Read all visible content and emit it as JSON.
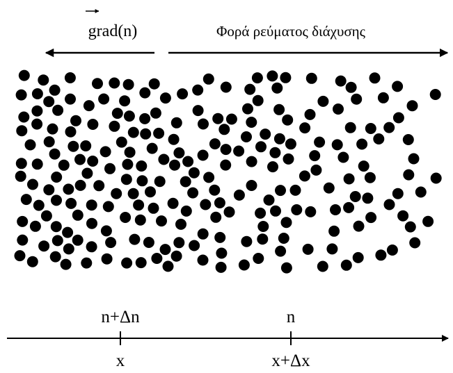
{
  "gradient_label": "grad(n)",
  "flux_label": "Φορά ρεύματος διάχυσης",
  "axis": {
    "left_density": "n+Δn",
    "right_density": "n",
    "left_position": "x",
    "right_position": "x+Δx"
  }
}
